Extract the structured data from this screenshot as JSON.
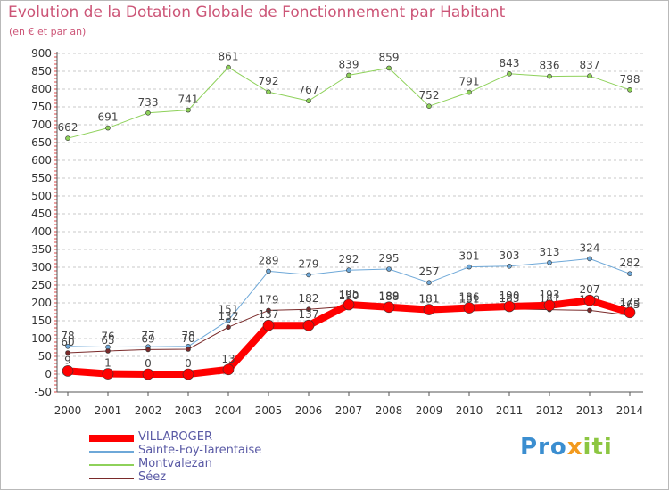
{
  "title": "Evolution de la Dotation Globale de Fonctionnement par Habitant",
  "subtitle": "(en € et par an)",
  "logo": {
    "part1": "Pro",
    "part2": "x",
    "part3": "iti"
  },
  "chart_data": {
    "type": "line",
    "title": "Evolution de la Dotation Globale de Fonctionnement par Habitant",
    "subtitle": "(en € et par an)",
    "x": [
      "2000",
      "2001",
      "2002",
      "2003",
      "2004",
      "2005",
      "2006",
      "2007",
      "2008",
      "2009",
      "2010",
      "2011",
      "2012",
      "2013",
      "2014"
    ],
    "ylim": [
      -50,
      900
    ],
    "yticks": [
      -50,
      0,
      50,
      100,
      150,
      200,
      250,
      300,
      350,
      400,
      450,
      500,
      550,
      600,
      650,
      700,
      750,
      800,
      850,
      900
    ],
    "grid": "horizontal",
    "legend_position": "bottom-left",
    "series": [
      {
        "name": "Montvalezan",
        "color": "#8ed15a",
        "width": 1,
        "marker": 2.5,
        "values": [
          662,
          691,
          733,
          741,
          861,
          792,
          767,
          839,
          859,
          752,
          791,
          843,
          836,
          837,
          798
        ],
        "labels": [
          "662",
          "691",
          "733",
          "741",
          "861",
          "792",
          "767",
          "839",
          "859",
          "752",
          "791",
          "843",
          "836",
          "837",
          "798"
        ]
      },
      {
        "name": "Sainte-Foy-Tarentaise",
        "color": "#6ea8d8",
        "width": 1,
        "marker": 2.5,
        "values": [
          78,
          76,
          77,
          78,
          151,
          289,
          279,
          292,
          295,
          257,
          301,
          303,
          313,
          324,
          282
        ],
        "labels": [
          "78",
          "76",
          "77",
          "78",
          "151",
          "289",
          "279",
          "292",
          "295",
          "257",
          "301",
          "303",
          "313",
          "324",
          "282"
        ]
      },
      {
        "name": "Séez",
        "color": "#7a2a2a",
        "width": 1,
        "marker": 2.5,
        "values": [
          60,
          65,
          69,
          70,
          132,
          179,
          182,
          190,
          189,
          181,
          181,
          183,
          181,
          179,
          165
        ],
        "labels": [
          "60",
          "65",
          "69",
          "70",
          "132",
          "179",
          "182",
          "190",
          "189",
          "181",
          "181",
          "183",
          "181",
          "179",
          "165"
        ]
      },
      {
        "name": "VILLAROGER",
        "color": "#ff0000",
        "width": 8,
        "marker": 6,
        "values": [
          9,
          1,
          0,
          0,
          13,
          137,
          137,
          195,
          188,
          181,
          186,
          190,
          193,
          207,
          173
        ],
        "labels": [
          "9",
          "1",
          "0",
          "0",
          "13",
          "137",
          "137",
          "195",
          "188",
          "181",
          "186",
          "190",
          "193",
          "207",
          "173"
        ]
      }
    ],
    "legend_order": [
      "VILLAROGER",
      "Sainte-Foy-Tarentaise",
      "Montvalezan",
      "Séez"
    ]
  }
}
